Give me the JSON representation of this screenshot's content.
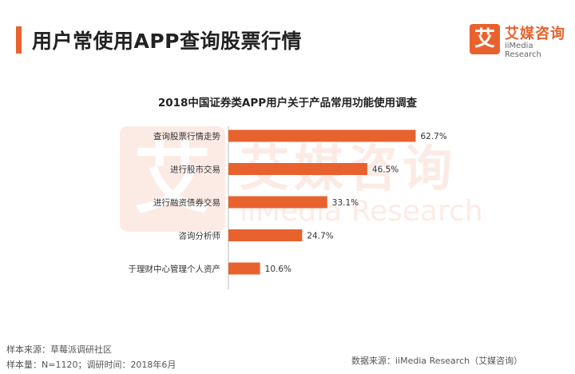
{
  "page_title": "用户常使用APP查询股票行情",
  "logo": {
    "mark": "艾",
    "name_cn": "艾媒咨询",
    "name_en": "iiMedia Research"
  },
  "watermark": {
    "mark": "艾",
    "text_cn": "艾媒咨询",
    "text_en": "iiMedia Research"
  },
  "chart_data": {
    "type": "bar",
    "orientation": "horizontal",
    "title": "2018中国证券类APP用户关于产品常用功能使用调查",
    "categories": [
      "查询股票行情走势",
      "进行股市交易",
      "进行融资债券交易",
      "咨询分析师",
      "于理财中心管理个人资产"
    ],
    "values": [
      62.7,
      46.5,
      33.1,
      24.7,
      10.6
    ],
    "value_labels": [
      "62.7%",
      "46.5%",
      "33.1%",
      "24.7%",
      "10.6%"
    ],
    "unit": "%",
    "xlim": [
      0,
      100
    ],
    "grid": false,
    "legend": "none",
    "bar_color": "#e8622e"
  },
  "footer": {
    "sample_source": "样本来源：草莓派调研社区",
    "sample_size": "样本量：N=1120；调研时间：2018年6月",
    "data_source": "数据来源：iiMedia Research（艾媒咨询）"
  }
}
